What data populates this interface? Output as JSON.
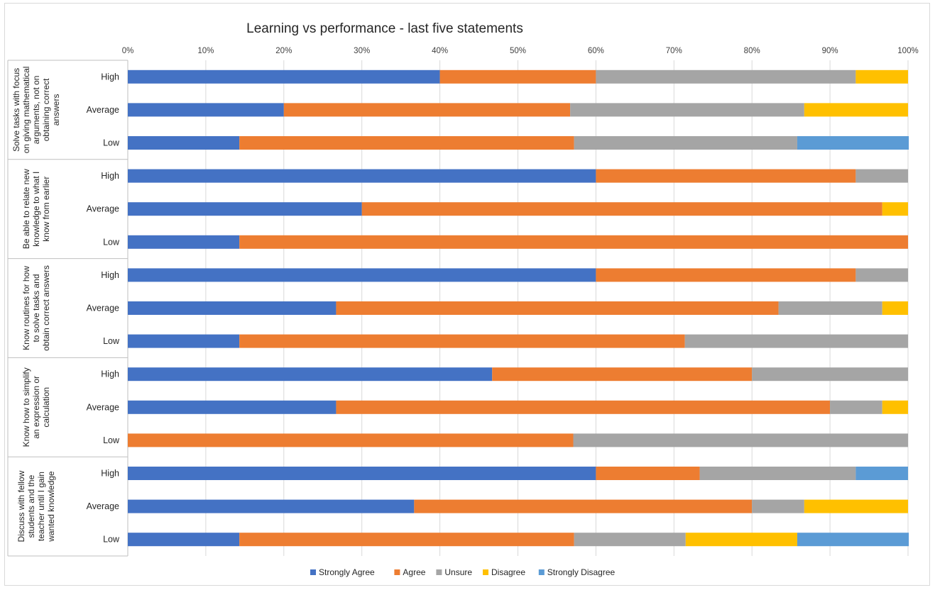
{
  "chart_data": {
    "type": "bar",
    "orientation": "horizontal",
    "stacked": "percent",
    "title": "Learning vs performance - last five statements",
    "xlim": [
      0,
      100
    ],
    "x_ticks": [
      "0%",
      "10%",
      "20%",
      "30%",
      "40%",
      "50%",
      "60%",
      "70%",
      "80%",
      "90%",
      "100%"
    ],
    "grid": true,
    "legend_position": "bottom",
    "series": [
      {
        "name": "Strongly Agree",
        "color": "#4472C4"
      },
      {
        "name": "Agree",
        "color": "#ED7D31"
      },
      {
        "name": "Unsure",
        "color": "#A5A5A5"
      },
      {
        "name": "Disagree",
        "color": "#FFC000"
      },
      {
        "name": "Strongly Disagree",
        "color": "#5B9BD5"
      }
    ],
    "groups": [
      {
        "label_lines": [
          "Solve tasks with focus",
          "on giving mathematical",
          "arguments, not on",
          "obtaining correct",
          "answers"
        ],
        "rows": [
          {
            "category": "High",
            "values": [
              40,
              20,
              33.3,
              6.7,
              0
            ]
          },
          {
            "category": "Average",
            "values": [
              20,
              36.7,
              30,
              13.3,
              0
            ]
          },
          {
            "category": "Low",
            "values": [
              14.3,
              42.9,
              28.6,
              0,
              14.3
            ]
          }
        ]
      },
      {
        "label_lines": [
          "Be able to relate new",
          "knowledge to what I",
          "know from earlier"
        ],
        "rows": [
          {
            "category": "High",
            "values": [
              60,
              33.3,
              6.7,
              0,
              0
            ]
          },
          {
            "category": "Average",
            "values": [
              30,
              66.7,
              0,
              3.3,
              0
            ]
          },
          {
            "category": "Low",
            "values": [
              14.3,
              85.7,
              0,
              0,
              0
            ]
          }
        ]
      },
      {
        "label_lines": [
          "Know routines for how",
          "to solve tasks and",
          "obtain correct answers"
        ],
        "rows": [
          {
            "category": "High",
            "values": [
              60,
              33.3,
              6.7,
              0,
              0
            ]
          },
          {
            "category": "Average",
            "values": [
              26.7,
              56.7,
              13.3,
              3.3,
              0
            ]
          },
          {
            "category": "Low",
            "values": [
              14.3,
              57.1,
              28.6,
              0,
              0
            ]
          }
        ]
      },
      {
        "label_lines": [
          "Know how to simplify",
          "an expression or",
          "calculation"
        ],
        "rows": [
          {
            "category": "High",
            "values": [
              46.7,
              33.3,
              20,
              0,
              0
            ]
          },
          {
            "category": "Average",
            "values": [
              26.7,
              63.3,
              6.7,
              3.3,
              0
            ]
          },
          {
            "category": "Low",
            "values": [
              0,
              57.1,
              42.9,
              0,
              0
            ]
          }
        ]
      },
      {
        "label_lines": [
          "Discuss with fellow",
          "students and the",
          "teacher until I gain",
          "wanted knowledge"
        ],
        "rows": [
          {
            "category": "High",
            "values": [
              60,
              13.3,
              20,
              0,
              6.7
            ]
          },
          {
            "category": "Average",
            "values": [
              36.7,
              43.3,
              6.7,
              13.3,
              0
            ]
          },
          {
            "category": "Low",
            "values": [
              14.3,
              42.9,
              14.3,
              14.3,
              14.3
            ]
          }
        ]
      }
    ]
  }
}
